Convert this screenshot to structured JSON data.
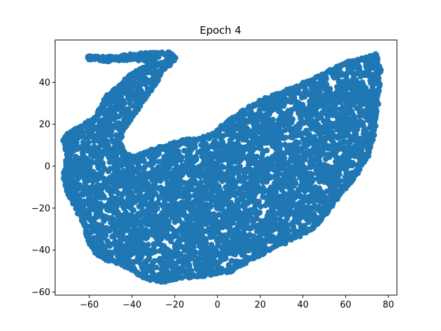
{
  "chart_data": {
    "type": "scatter",
    "title": "Epoch 4",
    "xlabel": "",
    "ylabel": "",
    "xlim": [
      -76,
      84
    ],
    "ylim": [
      -61.5,
      60.2
    ],
    "x_ticks": [
      -60,
      -40,
      -20,
      0,
      20,
      40,
      60,
      80
    ],
    "y_ticks": [
      -60,
      -40,
      -20,
      0,
      20,
      40
    ],
    "x_tick_labels": [
      "−60",
      "−40",
      "−20",
      "0",
      "20",
      "40",
      "60",
      "80"
    ],
    "y_tick_labels": [
      "−60",
      "−40",
      "−20",
      "0",
      "20",
      "40"
    ],
    "grid": false,
    "legend": "none",
    "marker_color": "#1f77b4",
    "series": [
      {
        "region_outline": [
          [
            -72,
            13
          ],
          [
            -66,
            18
          ],
          [
            -58,
            22
          ],
          [
            -54,
            28
          ],
          [
            -52,
            33
          ],
          [
            -46,
            38
          ],
          [
            -40,
            44
          ],
          [
            -34,
            47
          ],
          [
            -28,
            48
          ],
          [
            -36,
            51
          ],
          [
            -42,
            51
          ],
          [
            -46,
            51
          ],
          [
            -48,
            52
          ],
          [
            -60,
            52
          ],
          [
            -60,
            51.5
          ],
          [
            -52,
            50
          ],
          [
            -42,
            53
          ],
          [
            -32,
            53.5
          ],
          [
            -22,
            54
          ],
          [
            -20,
            51
          ],
          [
            -26,
            46
          ],
          [
            -30,
            38
          ],
          [
            -36,
            30
          ],
          [
            -40,
            24
          ],
          [
            -44,
            18
          ],
          [
            -46,
            12
          ],
          [
            -44,
            6
          ],
          [
            -40,
            4
          ],
          [
            -34,
            6
          ],
          [
            -26,
            9
          ],
          [
            -16,
            12
          ],
          [
            -8,
            13
          ],
          [
            -2,
            15
          ],
          [
            4,
            20
          ],
          [
            10,
            25
          ],
          [
            20,
            31
          ],
          [
            30,
            35
          ],
          [
            42,
            40
          ],
          [
            52,
            45
          ],
          [
            60,
            49
          ],
          [
            68,
            51
          ],
          [
            74,
            53
          ],
          [
            76,
            46
          ],
          [
            75,
            30
          ],
          [
            73,
            15
          ],
          [
            70,
            5
          ],
          [
            64,
            -5
          ],
          [
            56,
            -15
          ],
          [
            50,
            -24
          ],
          [
            44,
            -30
          ],
          [
            36,
            -34
          ],
          [
            24,
            -40
          ],
          [
            14,
            -45
          ],
          [
            6,
            -50
          ],
          [
            -6,
            -52
          ],
          [
            -18,
            -53
          ],
          [
            -26,
            -55
          ],
          [
            -34,
            -53
          ],
          [
            -42,
            -48
          ],
          [
            -50,
            -45
          ],
          [
            -56,
            -42
          ],
          [
            -60,
            -36
          ],
          [
            -62,
            -28
          ],
          [
            -66,
            -20
          ],
          [
            -70,
            -12
          ],
          [
            -72,
            -4
          ],
          [
            -70,
            4
          ]
        ],
        "point_count": 5200
      }
    ]
  }
}
